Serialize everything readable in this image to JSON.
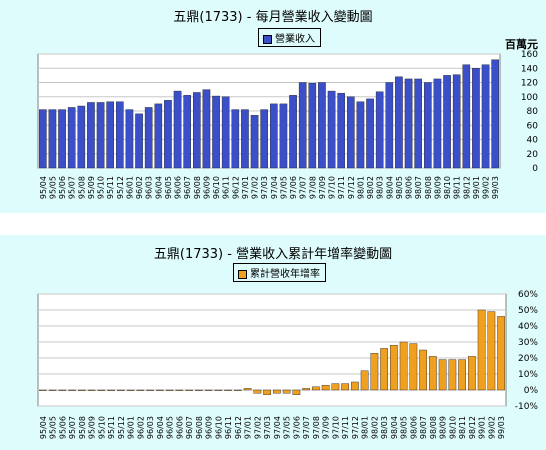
{
  "chart_data": [
    {
      "type": "bar",
      "title": "五鼎(1733) - 每月營業收入變動圖",
      "legend": "營業收入",
      "unit": "百萬元",
      "color": "#3b4fc9",
      "ylim": [
        0,
        160
      ],
      "yticks": [
        0,
        20,
        40,
        60,
        80,
        100,
        120,
        140,
        160
      ],
      "grid": true,
      "legend_position": "top-center",
      "categories": [
        "95/04",
        "95/05",
        "95/06",
        "95/07",
        "95/08",
        "95/09",
        "95/10",
        "95/11",
        "95/12",
        "96/01",
        "96/02",
        "96/03",
        "96/04",
        "96/05",
        "96/06",
        "96/07",
        "96/08",
        "96/09",
        "96/10",
        "96/11",
        "96/12",
        "97/01",
        "97/02",
        "97/03",
        "97/04",
        "97/05",
        "97/06",
        "97/07",
        "97/08",
        "97/09",
        "97/10",
        "97/11",
        "97/12",
        "98/01",
        "98/02",
        "98/03",
        "98/04",
        "98/05",
        "98/06",
        "98/07",
        "98/08",
        "98/09",
        "98/10",
        "98/11",
        "98/12",
        "99/01",
        "99/02",
        "99/03"
      ],
      "values": [
        82,
        82,
        82,
        85,
        87,
        92,
        92,
        93,
        93,
        82,
        76,
        85,
        90,
        95,
        108,
        102,
        106,
        110,
        101,
        100,
        82,
        82,
        74,
        82,
        90,
        90,
        102,
        120,
        119,
        120,
        108,
        105,
        100,
        93,
        97,
        107,
        120,
        128,
        125,
        125,
        120,
        125,
        130,
        131,
        145,
        140,
        145,
        152
      ]
    },
    {
      "type": "bar",
      "title": "五鼎(1733) -  營業收入累計年增率變動圖",
      "legend": "累計營收年增率",
      "color": "#f0a020",
      "ylim": [
        -10,
        60
      ],
      "yticks": [
        -10,
        0,
        10,
        20,
        30,
        40,
        50,
        60
      ],
      "ytick_labels": [
        "-10%",
        "0%",
        "10%",
        "20%",
        "30%",
        "40%",
        "50%",
        "60%"
      ],
      "grid": true,
      "legend_position": "top-center",
      "categories": [
        "95/04",
        "95/05",
        "95/06",
        "95/07",
        "95/08",
        "95/09",
        "95/10",
        "95/11",
        "95/12",
        "96/01",
        "96/02",
        "96/03",
        "96/04",
        "96/05",
        "96/06",
        "96/07",
        "96/08",
        "96/09",
        "96/10",
        "96/11",
        "96/12",
        "97/01",
        "97/02",
        "97/03",
        "97/04",
        "97/05",
        "97/06",
        "97/07",
        "97/08",
        "97/09",
        "97/10",
        "97/11",
        "97/12",
        "98/01",
        "98/02",
        "98/03",
        "98/04",
        "98/05",
        "98/06",
        "98/07",
        "98/08",
        "98/09",
        "98/10",
        "98/11",
        "98/12",
        "99/01",
        "99/02",
        "99/03"
      ],
      "values": [
        0,
        0,
        0,
        0,
        0,
        0,
        0,
        0,
        0,
        0,
        0,
        0,
        0,
        0,
        0,
        0,
        0,
        0,
        0,
        0,
        0,
        1,
        -2,
        -3,
        -2,
        -2,
        -3,
        1,
        2,
        3,
        4,
        4,
        5,
        12,
        23,
        26,
        28,
        30,
        29,
        25,
        21,
        19,
        19,
        19,
        21,
        50,
        49,
        46
      ]
    }
  ]
}
